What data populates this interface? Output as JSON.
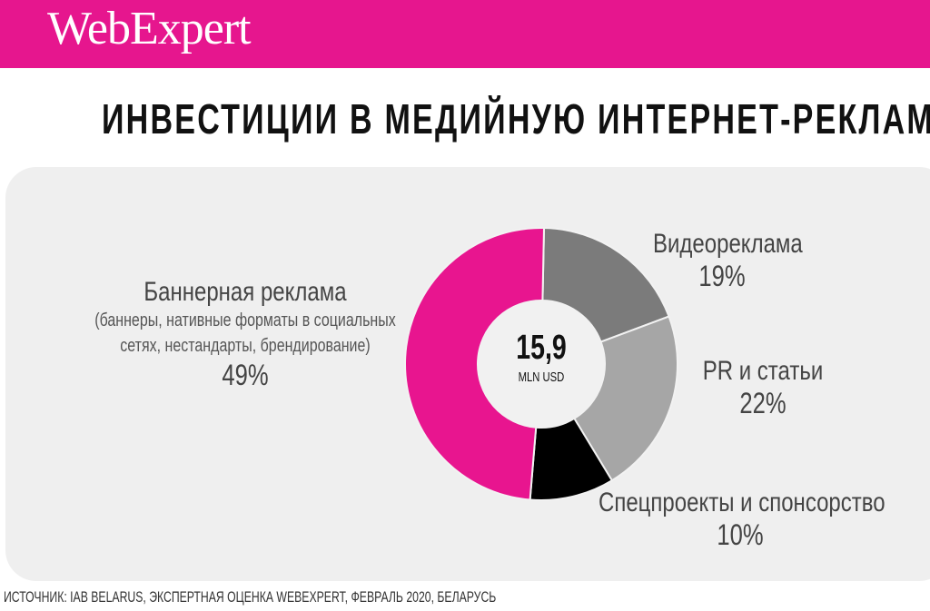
{
  "header": {
    "logo": "WebExpert",
    "brand_color": "#e6168e"
  },
  "title": "ИНВЕСТИЦИИ В МЕДИЙНУЮ ИНТЕРНЕТ-РЕКЛАМУ",
  "source": "ИСТОЧНИК: IAB BELARUS,  ЭКСПЕРТНАЯ ОЦЕНКА WEBEXPERT, ФЕВРАЛЬ 2020,  БЕЛАРУСЬ",
  "chart_data": {
    "type": "pie",
    "style": "donut",
    "title": "ИНВЕСТИЦИИ В МЕДИЙНУЮ ИНТЕРНЕТ-РЕКЛАМУ",
    "center_value": "15,9",
    "center_unit": "MLN USD",
    "slices": [
      {
        "label": "Видеореклама",
        "value": 19,
        "pct": "19%",
        "color": "#7b7b7b"
      },
      {
        "label": "PR и статьи",
        "value": 22,
        "pct": "22%",
        "color": "#a6a6a6"
      },
      {
        "label": "Спецпроекты и спонсорство",
        "value": 10,
        "pct": "10%",
        "color": "#000000"
      },
      {
        "label": "Баннерная реклама",
        "value": 49,
        "pct": "49%",
        "color": "#e8158f",
        "note_line1": "(баннеры, нативные форматы в социальных",
        "note_line2": "сетях, нестандарты, брендирование)"
      }
    ]
  }
}
